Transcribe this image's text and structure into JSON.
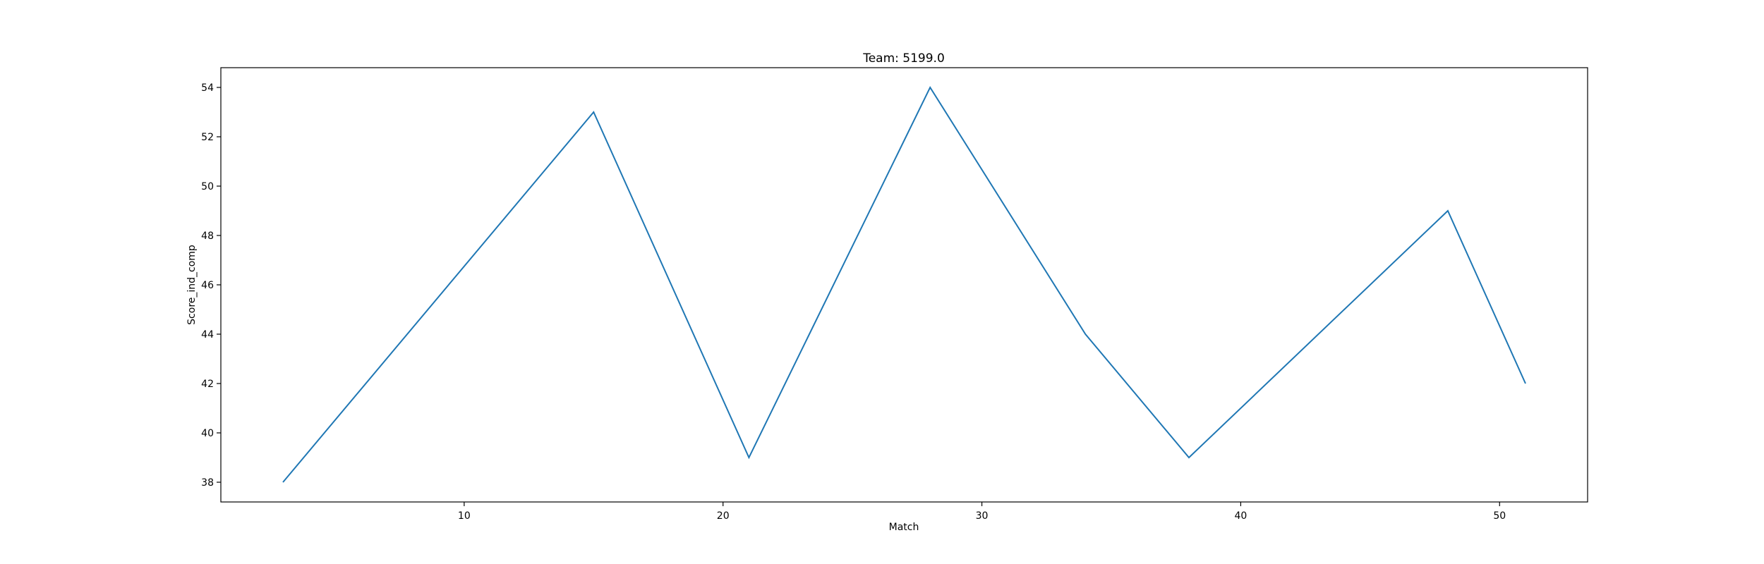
{
  "chart_data": {
    "type": "line",
    "title": "Team: 5199.0",
    "xlabel": "Match",
    "ylabel": "Score_ind_comp",
    "xlim": [
      0.6,
      53.4
    ],
    "ylim": [
      37.2,
      54.8
    ],
    "xticks": [
      10,
      20,
      30,
      40,
      50
    ],
    "xtick_labels": [
      "10",
      "20",
      "30",
      "40",
      "50"
    ],
    "yticks": [
      38,
      40,
      42,
      44,
      46,
      48,
      50,
      52,
      54
    ],
    "ytick_labels": [
      "38",
      "40",
      "42",
      "44",
      "46",
      "48",
      "50",
      "52",
      "54"
    ],
    "grid": false,
    "legend": "none",
    "series": [
      {
        "color": "#1f77b4",
        "x": [
          3,
          15,
          21,
          28,
          34,
          38,
          48,
          51
        ],
        "y": [
          38,
          53,
          39,
          54,
          44,
          39,
          49,
          42
        ]
      }
    ]
  }
}
